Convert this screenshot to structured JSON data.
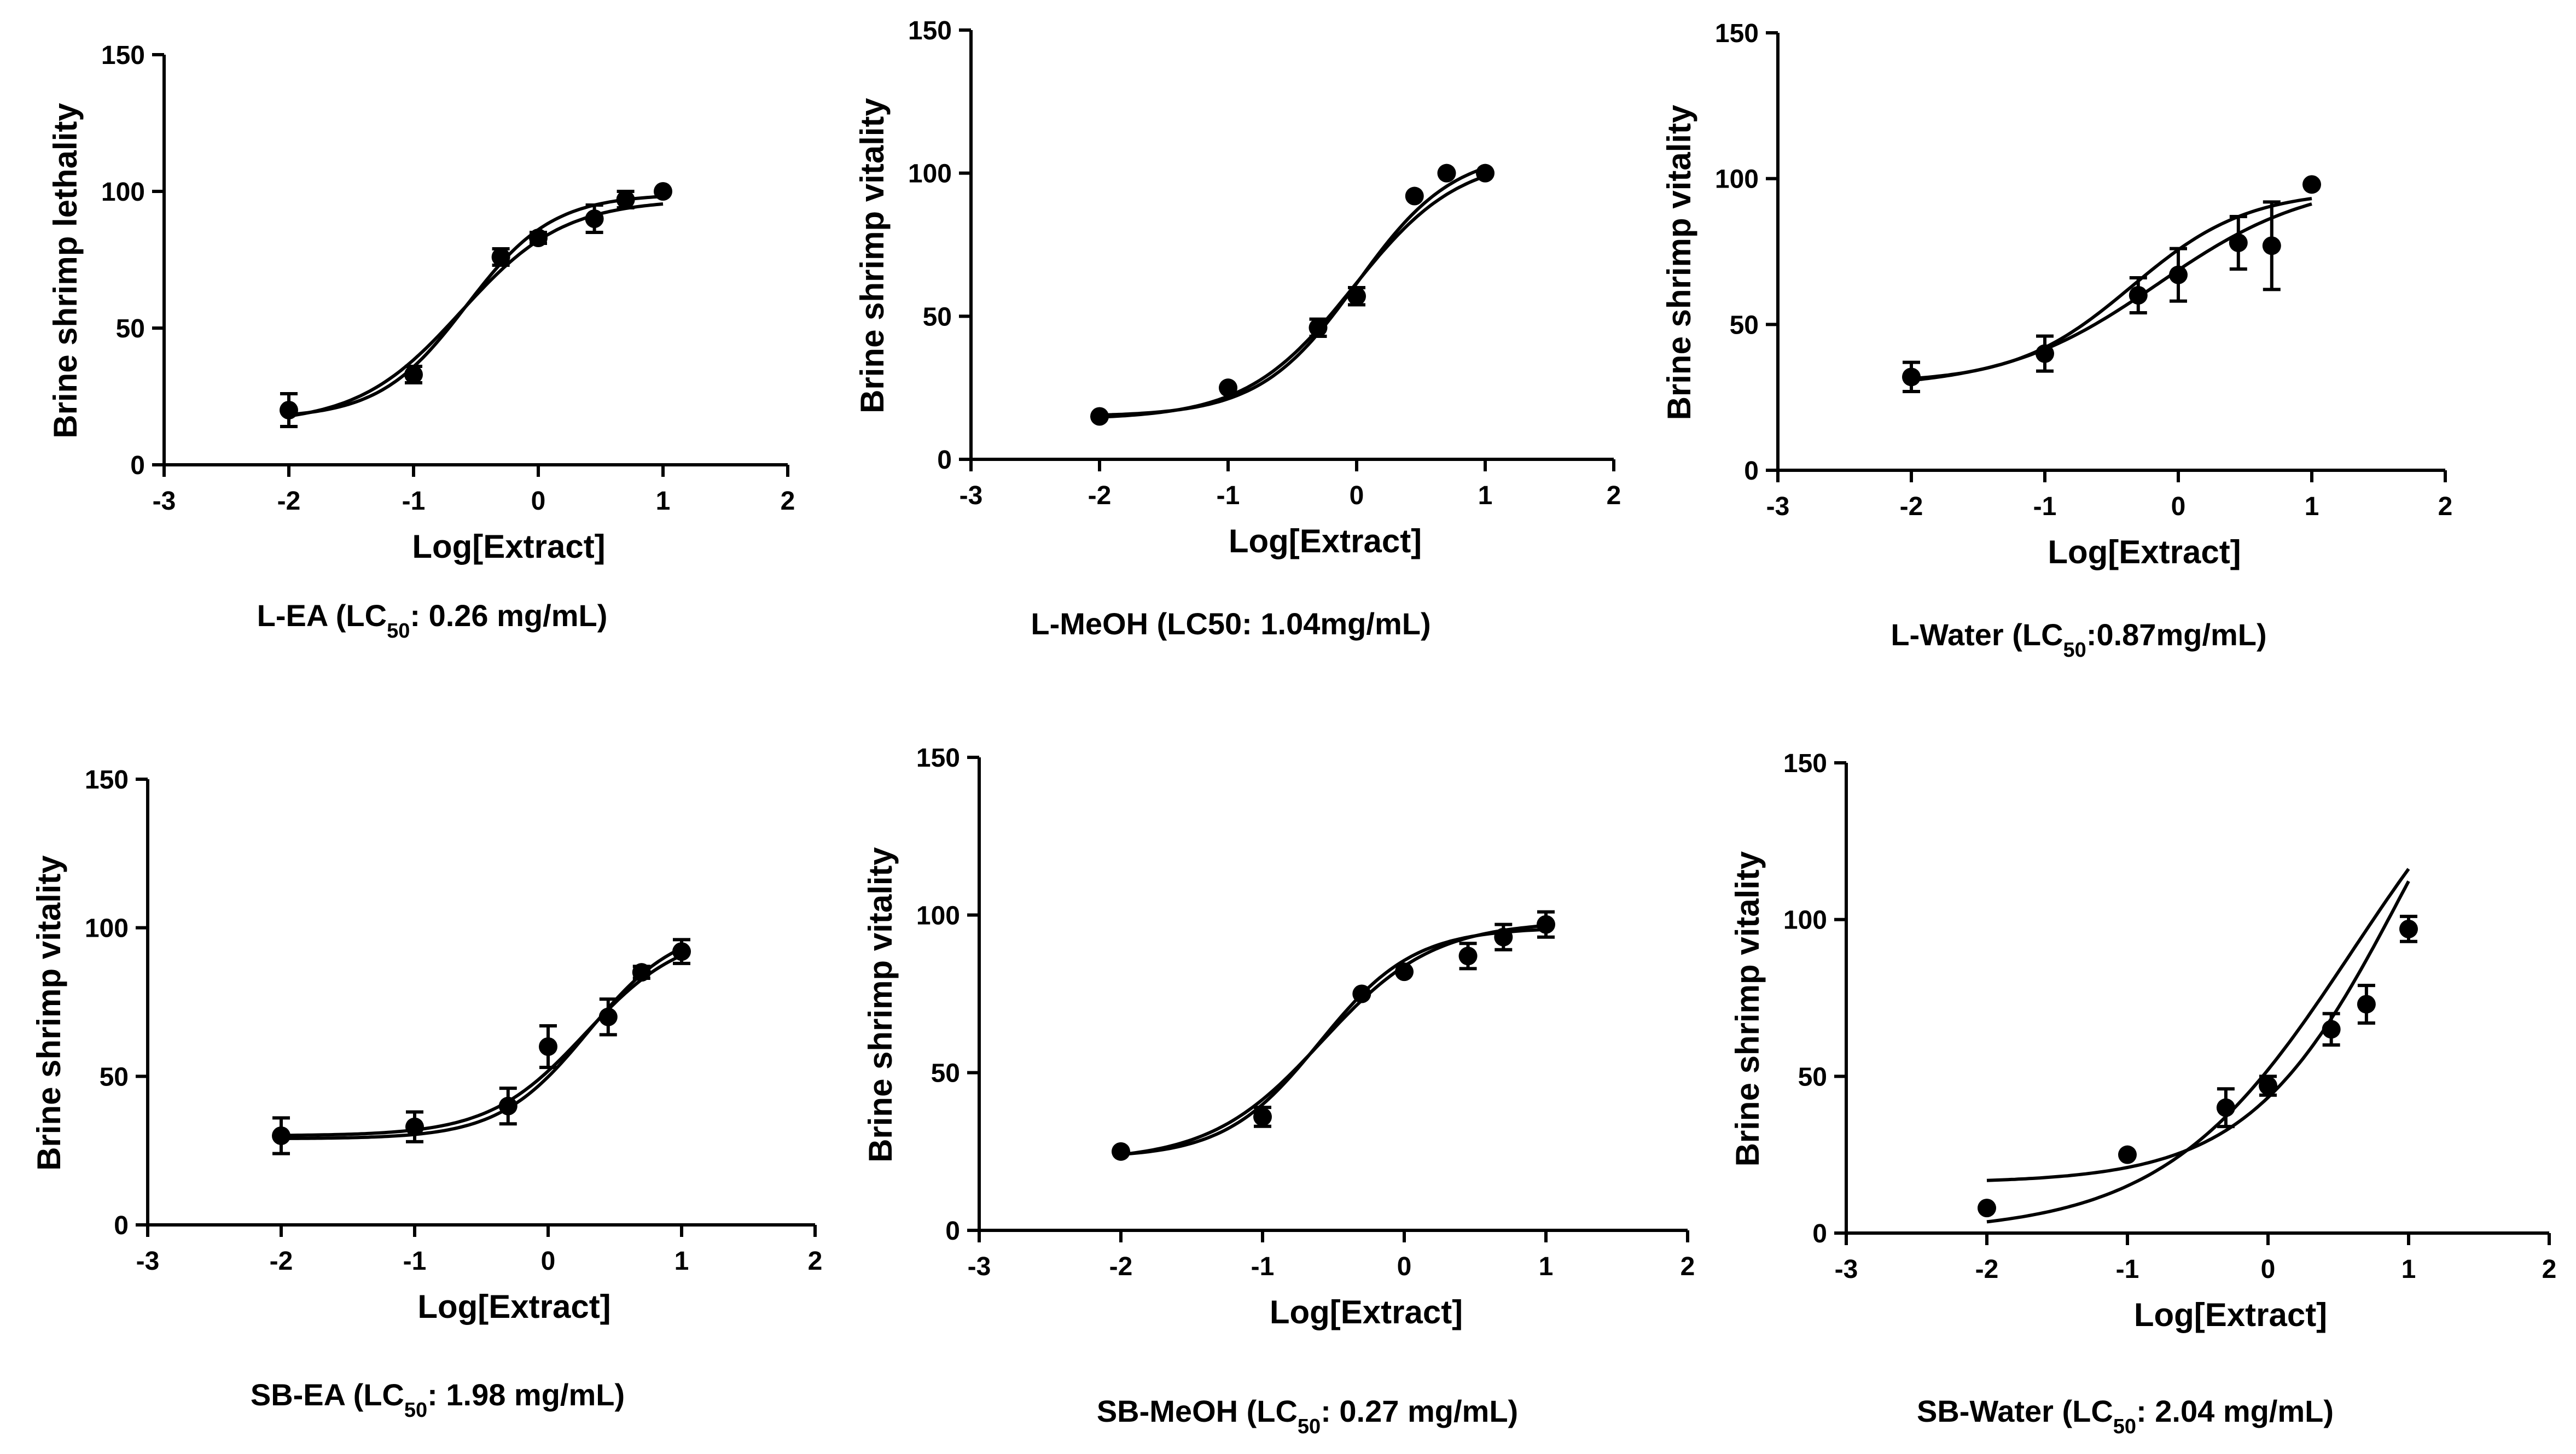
{
  "colors": {
    "ink": "#000000",
    "background": "#ffffff"
  },
  "chart_data": [
    {
      "type": "scatter",
      "caption": {
        "main": "L-EA  (LC",
        "sub": "50",
        "rest": ": 0.26 mg/mL)"
      },
      "xlabel": "Log[Extract]",
      "ylabel": "Brine shrimp lethality",
      "xlim": [
        -3,
        2
      ],
      "ylim": [
        0,
        150
      ],
      "xticks": [
        -3,
        -2,
        -1,
        0,
        1,
        2
      ],
      "yticks": [
        0,
        50,
        100,
        150
      ],
      "series": [
        {
          "name": "data",
          "x": [
            -2,
            -1,
            -0.3,
            0,
            0.45,
            0.7,
            1
          ],
          "y": [
            20,
            33,
            76,
            83,
            90,
            97,
            100
          ],
          "err": [
            6,
            3,
            3,
            2,
            5,
            3,
            1
          ]
        }
      ],
      "fits": [
        {
          "bottom": 17,
          "top": 99,
          "logec50": -0.58,
          "hill": 1.25
        },
        {
          "bottom": 15,
          "top": 97,
          "logec50": -0.62,
          "hill": 1.05
        }
      ]
    },
    {
      "type": "scatter",
      "caption": {
        "main": "L-MeOH (LC50: 1.04mg/mL)",
        "sub": "",
        "rest": ""
      },
      "xlabel": "Log[Extract]",
      "ylabel": "Brine shrimp vitality",
      "xlim": [
        -3,
        2
      ],
      "ylim": [
        0,
        150
      ],
      "xticks": [
        -3,
        -2,
        -1,
        0,
        1,
        2
      ],
      "yticks": [
        0,
        50,
        100,
        150
      ],
      "series": [
        {
          "name": "data",
          "x": [
            -2,
            -1,
            -0.3,
            0,
            0.45,
            0.7,
            1
          ],
          "y": [
            15,
            25,
            46,
            57,
            92,
            100,
            100
          ],
          "err": [
            1,
            1,
            3,
            3,
            1,
            1,
            1
          ]
        }
      ],
      "fits": [
        {
          "bottom": 15,
          "top": 108,
          "logec50": 0.0,
          "hill": 1.15
        },
        {
          "bottom": 14,
          "top": 106,
          "logec50": -0.03,
          "hill": 1.05
        }
      ]
    },
    {
      "type": "scatter",
      "caption": {
        "main": "L-Water  (LC",
        "sub": "50",
        "rest": ":0.87mg/mL)"
      },
      "xlabel": "Log[Extract]",
      "ylabel": "Brine shrimp vitality",
      "xlim": [
        -3,
        2
      ],
      "ylim": [
        0,
        150
      ],
      "xticks": [
        -3,
        -2,
        -1,
        0,
        1,
        2
      ],
      "yticks": [
        0,
        50,
        100,
        150
      ],
      "series": [
        {
          "name": "data",
          "x": [
            -2,
            -1,
            -0.3,
            0,
            0.45,
            0.7,
            1
          ],
          "y": [
            32,
            40,
            60,
            67,
            78,
            77,
            98
          ],
          "err": [
            5,
            6,
            6,
            9,
            9,
            15,
            1
          ]
        }
      ],
      "fits": [
        {
          "bottom": 28,
          "top": 100,
          "logec50": -0.15,
          "hill": 0.75
        },
        {
          "bottom": 30,
          "top": 96,
          "logec50": -0.35,
          "hill": 1.0
        }
      ]
    },
    {
      "type": "scatter",
      "caption": {
        "main": "SB-EA (LC",
        "sub": "50",
        "rest": ": 1.98 mg/mL)"
      },
      "xlabel": "Log[Extract]",
      "ylabel": "Brine shrimp vitality",
      "xlim": [
        -3,
        2
      ],
      "ylim": [
        0,
        150
      ],
      "xticks": [
        -3,
        -2,
        -1,
        0,
        1,
        2
      ],
      "yticks": [
        0,
        50,
        100,
        150
      ],
      "series": [
        {
          "name": "data",
          "x": [
            -2,
            -1,
            -0.3,
            0,
            0.45,
            0.7,
            1
          ],
          "y": [
            30,
            33,
            40,
            60,
            70,
            85,
            92
          ],
          "err": [
            6,
            5,
            6,
            7,
            6,
            2,
            4
          ]
        }
      ],
      "fits": [
        {
          "bottom": 29,
          "top": 101,
          "logec50": 0.3,
          "hill": 1.3
        },
        {
          "bottom": 30,
          "top": 99,
          "logec50": 0.28,
          "hill": 1.2
        }
      ]
    },
    {
      "type": "scatter",
      "caption": {
        "main": "SB-MeOH (LC",
        "sub": "50",
        "rest": ": 0.27 mg/mL)"
      },
      "xlabel": "Log[Extract]",
      "ylabel": "Brine shrimp vitality",
      "xlim": [
        -3,
        2
      ],
      "ylim": [
        0,
        150
      ],
      "xticks": [
        -3,
        -2,
        -1,
        0,
        1,
        2
      ],
      "yticks": [
        0,
        50,
        100,
        150
      ],
      "series": [
        {
          "name": "data",
          "x": [
            -2,
            -1,
            -0.3,
            0,
            0.45,
            0.7,
            1
          ],
          "y": [
            25,
            36,
            75,
            82,
            87,
            93,
            97
          ],
          "err": [
            1,
            3,
            1,
            1,
            4,
            4,
            4
          ]
        }
      ],
      "fits": [
        {
          "bottom": 23,
          "top": 96,
          "logec50": -0.6,
          "hill": 1.3
        },
        {
          "bottom": 22,
          "top": 98,
          "logec50": -0.58,
          "hill": 1.1
        }
      ]
    },
    {
      "type": "scatter",
      "caption": {
        "main": "SB-Water (LC",
        "sub": "50",
        "rest": ": 2.04 mg/mL)"
      },
      "xlabel": "Log[Extract]",
      "ylabel": "Brine shrimp vitality",
      "xlim": [
        -3,
        2
      ],
      "ylim": [
        0,
        150
      ],
      "xticks": [
        -3,
        -2,
        -1,
        0,
        1,
        2
      ],
      "yticks": [
        0,
        50,
        100,
        150
      ],
      "series": [
        {
          "name": "data",
          "x": [
            -2,
            -1,
            -0.3,
            0,
            0.45,
            0.7,
            1
          ],
          "y": [
            8,
            25,
            40,
            47,
            65,
            73,
            97
          ],
          "err": [
            1,
            1,
            6,
            3,
            5,
            6,
            4
          ]
        }
      ],
      "fits": [
        {
          "bottom": 16,
          "top": 200,
          "logec50": 0.95,
          "hill": 0.8
        },
        {
          "bottom": 0,
          "top": 180,
          "logec50": 0.6,
          "hill": 0.65
        }
      ]
    }
  ]
}
